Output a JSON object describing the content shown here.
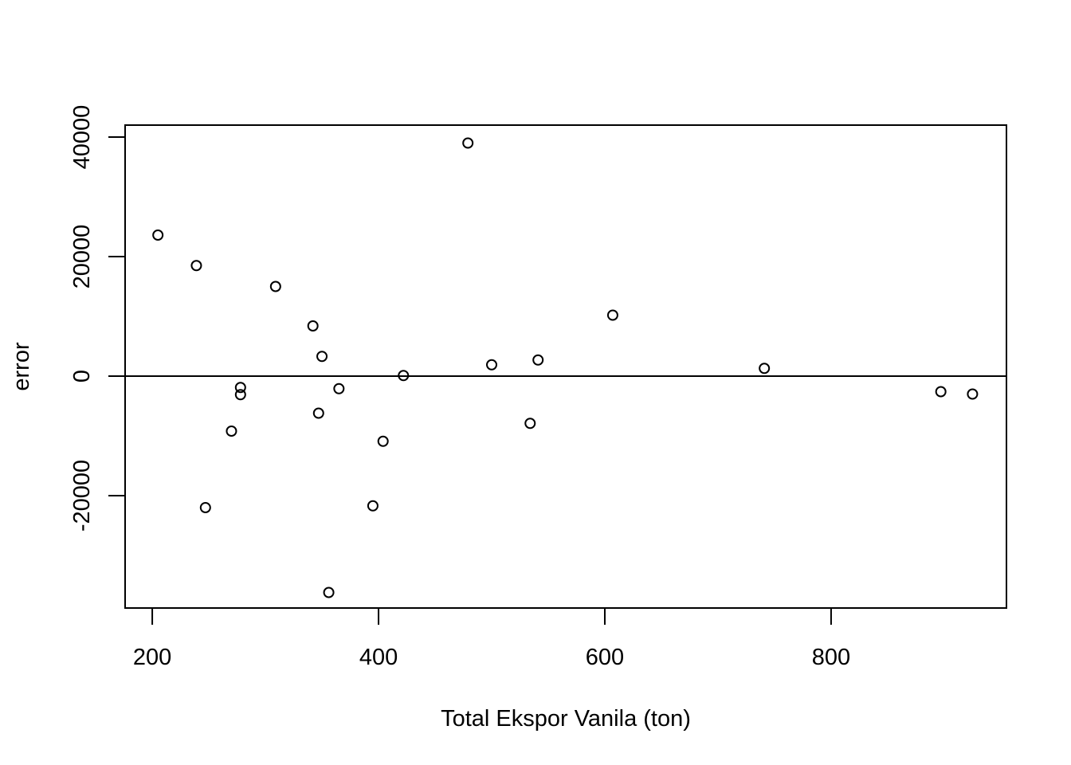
{
  "chart_data": {
    "type": "scatter",
    "title": "",
    "xlabel": "Total Ekspor Vanila (ton)",
    "ylabel": "error",
    "xlim": [
      176,
      955
    ],
    "ylim": [
      -38800,
      42000
    ],
    "xticks": [
      200,
      400,
      600,
      800
    ],
    "yticks": [
      -20000,
      0,
      20000,
      40000
    ],
    "xtick_labels": [
      "200",
      "400",
      "600",
      "800"
    ],
    "ytick_labels": [
      "-20000",
      "0",
      "20000",
      "40000"
    ],
    "reference_line": {
      "y": 0
    },
    "grid": false,
    "legend": "none",
    "marker": "open-circle",
    "series": [
      {
        "points": [
          {
            "x": 205,
            "y": 23600
          },
          {
            "x": 239,
            "y": 18500
          },
          {
            "x": 247,
            "y": -22000
          },
          {
            "x": 270,
            "y": -9200
          },
          {
            "x": 278,
            "y": -1900
          },
          {
            "x": 278,
            "y": -3100
          },
          {
            "x": 309,
            "y": 15000
          },
          {
            "x": 342,
            "y": 8400
          },
          {
            "x": 347,
            "y": -6200
          },
          {
            "x": 350,
            "y": 3300
          },
          {
            "x": 356,
            "y": -36200
          },
          {
            "x": 365,
            "y": -2100
          },
          {
            "x": 395,
            "y": -21700
          },
          {
            "x": 404,
            "y": -10900
          },
          {
            "x": 422,
            "y": 100
          },
          {
            "x": 479,
            "y": 39000
          },
          {
            "x": 500,
            "y": 1900
          },
          {
            "x": 534,
            "y": -7900
          },
          {
            "x": 541,
            "y": 2700
          },
          {
            "x": 607,
            "y": 10200
          },
          {
            "x": 741,
            "y": 1300
          },
          {
            "x": 897,
            "y": -2600
          },
          {
            "x": 925,
            "y": -3000
          }
        ]
      }
    ]
  }
}
